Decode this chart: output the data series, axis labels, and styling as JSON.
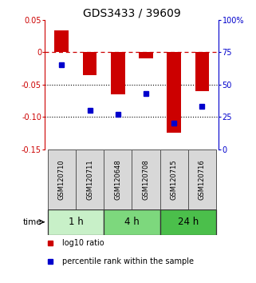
{
  "title": "GDS3433 / 39609",
  "samples": [
    "GSM120710",
    "GSM120711",
    "GSM120648",
    "GSM120708",
    "GSM120715",
    "GSM120716"
  ],
  "log10_ratio": [
    0.034,
    -0.035,
    -0.065,
    -0.01,
    -0.125,
    -0.06
  ],
  "percentile_rank": [
    65,
    30,
    27,
    43,
    20,
    33
  ],
  "time_groups": [
    {
      "label": "1 h",
      "color": "#c8f0c8",
      "start": 0,
      "end": 2
    },
    {
      "label": "4 h",
      "color": "#7dd87d",
      "start": 2,
      "end": 4
    },
    {
      "label": "24 h",
      "color": "#4bbf4b",
      "start": 4,
      "end": 6
    }
  ],
  "bar_color": "#cc0000",
  "dot_color": "#0000cc",
  "left_axis_color": "#cc0000",
  "right_axis_color": "#0000cc",
  "ylim_left": [
    -0.15,
    0.05
  ],
  "ylim_right": [
    0,
    100
  ],
  "yticks_left": [
    0.05,
    0.0,
    -0.05,
    -0.1,
    -0.15
  ],
  "ytick_labels_left": [
    "0.05",
    "0",
    "-0.05",
    "-0.10",
    "-0.15"
  ],
  "yticks_right": [
    100,
    75,
    50,
    25,
    0
  ],
  "ytick_labels_right": [
    "100%",
    "75",
    "50",
    "25",
    "0"
  ],
  "dotted_lines": [
    -0.05,
    -0.1
  ],
  "bar_width": 0.5,
  "sample_bg": "#d8d8d8",
  "background_color": "#ffffff",
  "title_fontsize": 10,
  "tick_fontsize": 7,
  "legend_fontsize": 7,
  "time_label_fontsize": 8.5,
  "sample_label_fontsize": 6
}
